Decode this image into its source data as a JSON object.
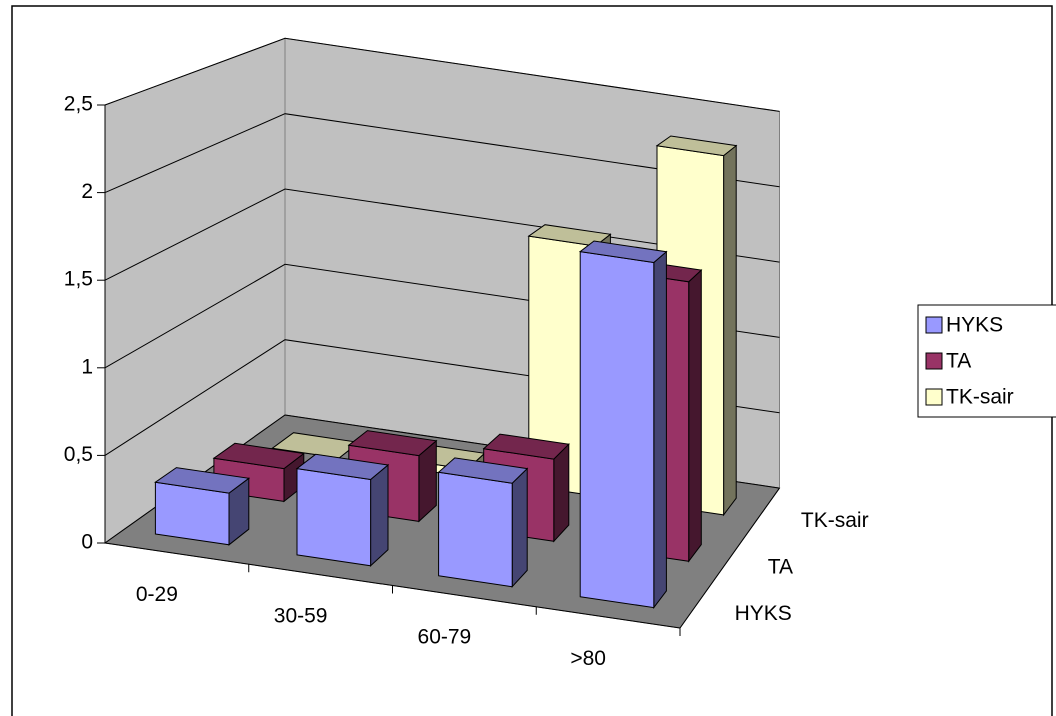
{
  "chart_data": {
    "type": "bar3d",
    "categories": [
      "0-29",
      "30-59",
      "60-79",
      ">80"
    ],
    "series": [
      {
        "name": "HYKS",
        "color": "#9999ff",
        "values": [
          0.3,
          0.5,
          0.6,
          2.0
        ]
      },
      {
        "name": "TA",
        "color": "#993366",
        "values": [
          0.2,
          0.4,
          0.5,
          1.7
        ]
      },
      {
        "name": "TK-sair",
        "color": "#ffffcc",
        "values": [
          0,
          0.05,
          1.6,
          2.3
        ]
      }
    ],
    "ylim": [
      0,
      2.5
    ],
    "yticks": [
      0,
      {
        "value": 0.5,
        "label": "0,5"
      },
      1,
      {
        "value": 1.5,
        "label": "1,5"
      },
      2,
      {
        "value": 2.5,
        "label": "2,5"
      }
    ],
    "grid": true,
    "legend": "right"
  }
}
